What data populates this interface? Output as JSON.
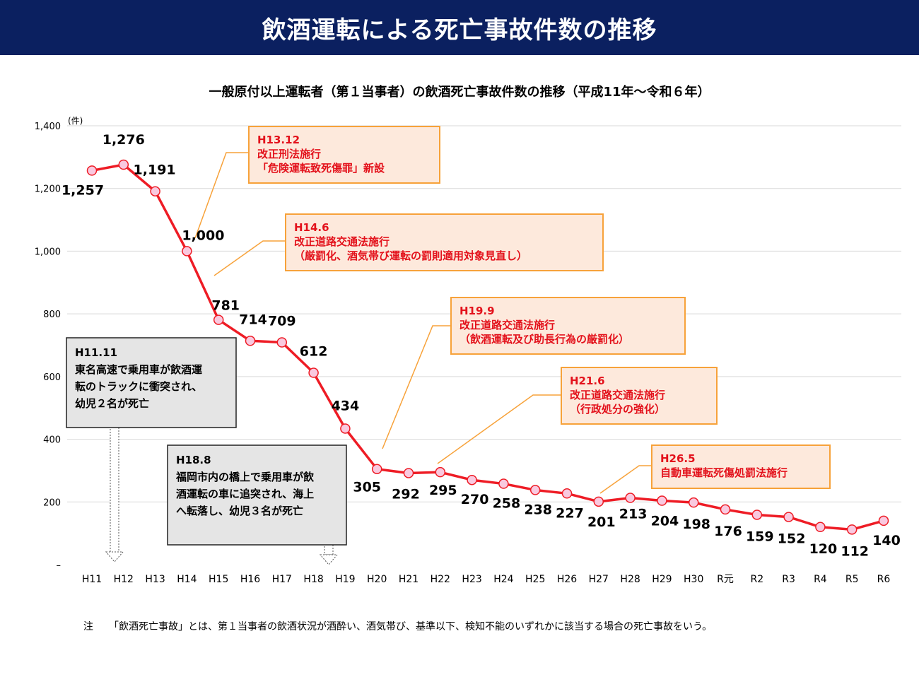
{
  "header": {
    "title": "飲酒運転による死亡事故件数の推移"
  },
  "chart_data": {
    "type": "line",
    "title": "一般原付以上運転者（第１当事者）の飲酒死亡事故件数の推移（平成11年～令和６年）",
    "unit_label": "(件)",
    "ylim": [
      0,
      1400
    ],
    "y_ticks": [
      {
        "value": 0,
        "label": "–"
      },
      {
        "value": 200,
        "label": "200"
      },
      {
        "value": 400,
        "label": "400"
      },
      {
        "value": 600,
        "label": "600"
      },
      {
        "value": 800,
        "label": "800"
      },
      {
        "value": 1000,
        "label": "1,000"
      },
      {
        "value": 1200,
        "label": "1,200"
      },
      {
        "value": 1400,
        "label": "1,400"
      }
    ],
    "grid": true,
    "categories": [
      "H11",
      "H12",
      "H13",
      "H14",
      "H15",
      "H16",
      "H17",
      "H18",
      "H19",
      "H20",
      "H21",
      "H22",
      "H23",
      "H24",
      "H25",
      "H26",
      "H27",
      "H28",
      "H29",
      "H30",
      "R元",
      "R2",
      "R3",
      "R4",
      "R5",
      "R6"
    ],
    "values": [
      1257,
      1276,
      1191,
      1000,
      781,
      714,
      709,
      612,
      434,
      305,
      292,
      295,
      270,
      258,
      238,
      227,
      201,
      213,
      204,
      198,
      176,
      159,
      152,
      120,
      112,
      140
    ],
    "value_labels": [
      "1,257",
      "1,276",
      "1,191",
      "1,000",
      "781",
      "714",
      "709",
      "612",
      "434",
      "305",
      "292",
      "295",
      "270",
      "258",
      "238",
      "227",
      "201",
      "213",
      "204",
      "198",
      "176",
      "159",
      "152",
      "120",
      "112",
      "140"
    ],
    "series_color": "#ee1c25",
    "marker_fill": "#f9c9df",
    "law_events": [
      {
        "heading": "H13.12",
        "lines": [
          "改正刑法施行",
          "「危険運転致死傷罪」新設"
        ]
      },
      {
        "heading": "H14.6",
        "lines": [
          "改正道路交通法施行",
          "（厳罰化、酒気帯び運転の罰則適用対象見直し）"
        ]
      },
      {
        "heading": "H19.9",
        "lines": [
          "改正道路交通法施行",
          "（飲酒運転及び助長行為の厳罰化）"
        ]
      },
      {
        "heading": "H21.6",
        "lines": [
          "改正道路交通法施行",
          "（行政処分の強化）"
        ]
      },
      {
        "heading": "H26.5",
        "lines": [
          "自動車運転死傷処罰法施行"
        ]
      }
    ],
    "incidents": [
      {
        "heading": "H11.11",
        "lines": [
          "東名高速で乗用車が飲酒運",
          "転のトラックに衝突され、",
          "幼児２名が死亡"
        ]
      },
      {
        "heading": "H18.8",
        "lines": [
          "福岡市内の橋上で乗用車が飲",
          "酒運転の車に追突され、海上",
          "へ転落し、幼児３名が死亡"
        ]
      }
    ],
    "colors": {
      "callout_fill": "#fde9dc",
      "callout_border": "#f7a23a",
      "callout_text": "#e3111b",
      "incident_fill": "#e5e5e5"
    }
  },
  "footnote": {
    "lead": "注",
    "text": "「飲酒死亡事故」とは、第１当事者の飲酒状況が酒酔い、酒気帯び、基準以下、検知不能のいずれかに該当する場合の死亡事故をいう。"
  }
}
